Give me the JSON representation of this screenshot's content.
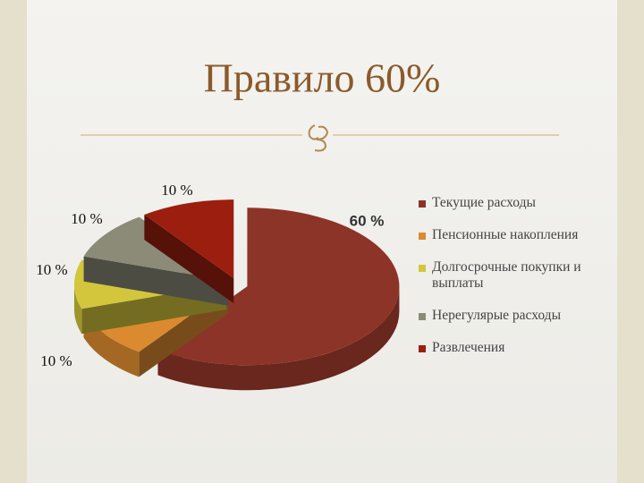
{
  "chart_data": {
    "type": "pie",
    "title": "Правило 60%",
    "categories": [
      "Текущие расходы",
      "Пенсионные накопления",
      "Долгосрочные покупки и выплаты",
      "Нерегулярые расходы",
      "Развлечения"
    ],
    "values": [
      60,
      10,
      10,
      10,
      10
    ],
    "value_labels": [
      "60 %",
      "10 %",
      "10 %",
      "10 %",
      "10 %"
    ],
    "colors": [
      "#8c3427",
      "#db8a30",
      "#d3c63c",
      "#8c8b78",
      "#9c1e0e"
    ]
  }
}
